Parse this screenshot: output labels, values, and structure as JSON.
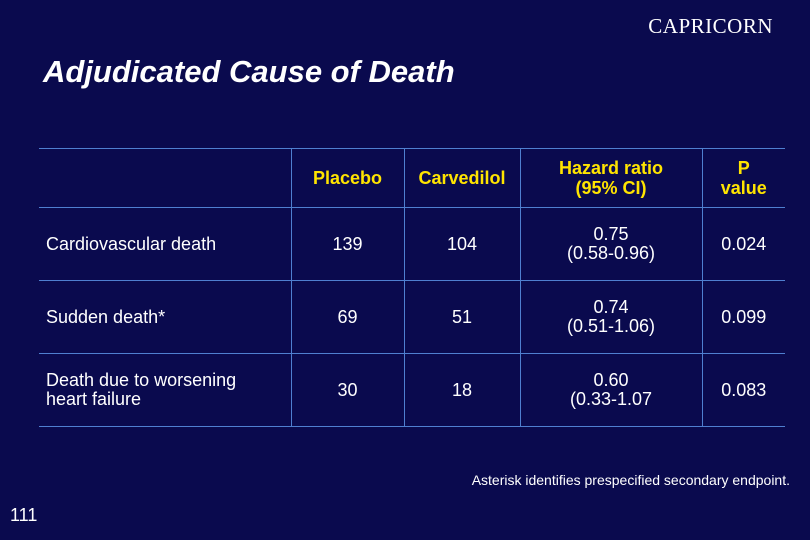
{
  "brand": "CAPRICORN",
  "title": "Adjudicated Cause of Death",
  "table": {
    "headers": {
      "label": "",
      "placebo": "Placebo",
      "carvedilol": "Carvedilol",
      "hr_line1": "Hazard ratio",
      "hr_line2": "(95% CI)",
      "p_line1": "P",
      "p_line2": "value"
    },
    "rows": [
      {
        "label_line1": "Cardiovascular death",
        "label_line2": "",
        "placebo": "139",
        "carvedilol": "104",
        "hr": "0.75",
        "ci": "(0.58-0.96)",
        "p": "0.024"
      },
      {
        "label_line1": "Sudden death*",
        "label_line2": "",
        "placebo": "69",
        "carvedilol": "51",
        "hr": "0.74",
        "ci": "(0.51-1.06)",
        "p": "0.099"
      },
      {
        "label_line1": "Death due to worsening",
        "label_line2": "heart failure",
        "placebo": "30",
        "carvedilol": "18",
        "hr": "0.60",
        "ci": "(0.33-1.07",
        "p": "0.083"
      }
    ]
  },
  "footnote": "Asterisk identifies prespecified secondary endpoint.",
  "page_number": "111",
  "colors": {
    "background": "#0a0a4e",
    "header_text": "#ffe400",
    "grid_lines": "#4f7fd0",
    "body_text": "#ffffff"
  }
}
